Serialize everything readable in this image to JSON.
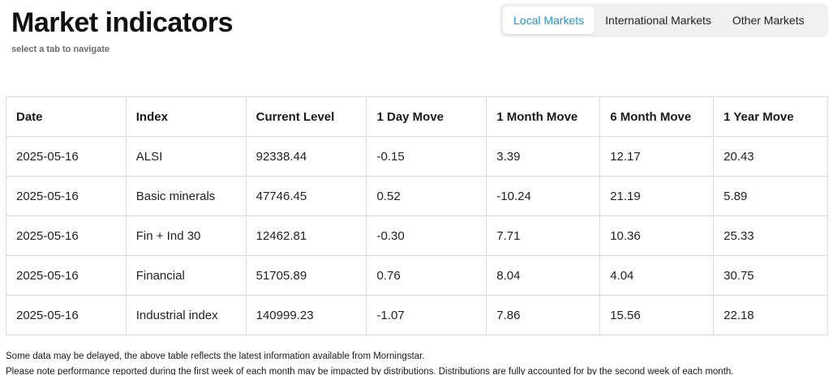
{
  "header": {
    "title": "Market indicators",
    "subtitle": "select a tab to navigate"
  },
  "tabs": [
    {
      "label": "Local Markets",
      "active": true
    },
    {
      "label": "International Markets",
      "active": false
    },
    {
      "label": "Other Markets",
      "active": false
    }
  ],
  "colors": {
    "active_tab_text": "#1a9ad6",
    "tab_bar_bg": "#f0f0f0",
    "table_border": "#dcdcdc"
  },
  "table": {
    "columns": [
      "Date",
      "Index",
      "Current Level",
      "1 Day Move",
      "1 Month Move",
      "6 Month Move",
      "1 Year Move"
    ],
    "rows": [
      [
        "2025-05-16",
        "ALSI",
        "92338.44",
        "-0.15",
        "3.39",
        "12.17",
        "20.43"
      ],
      [
        "2025-05-16",
        "Basic minerals",
        "47746.45",
        "0.52",
        "-10.24",
        "21.19",
        "5.89"
      ],
      [
        "2025-05-16",
        "Fin + Ind 30",
        "12462.81",
        "-0.30",
        "7.71",
        "10.36",
        "25.33"
      ],
      [
        "2025-05-16",
        "Financial",
        "51705.89",
        "0.76",
        "8.04",
        "4.04",
        "30.75"
      ],
      [
        "2025-05-16",
        "Industrial index",
        "140999.23",
        "-1.07",
        "7.86",
        "15.56",
        "22.18"
      ]
    ]
  },
  "footer": {
    "note1": "Some data may be delayed, the above table reflects the latest information available from Morningstar.",
    "note2": "Please note performance reported during the first week of each month may be impacted by distributions. Distributions are fully accounted for by the second week of each month."
  }
}
